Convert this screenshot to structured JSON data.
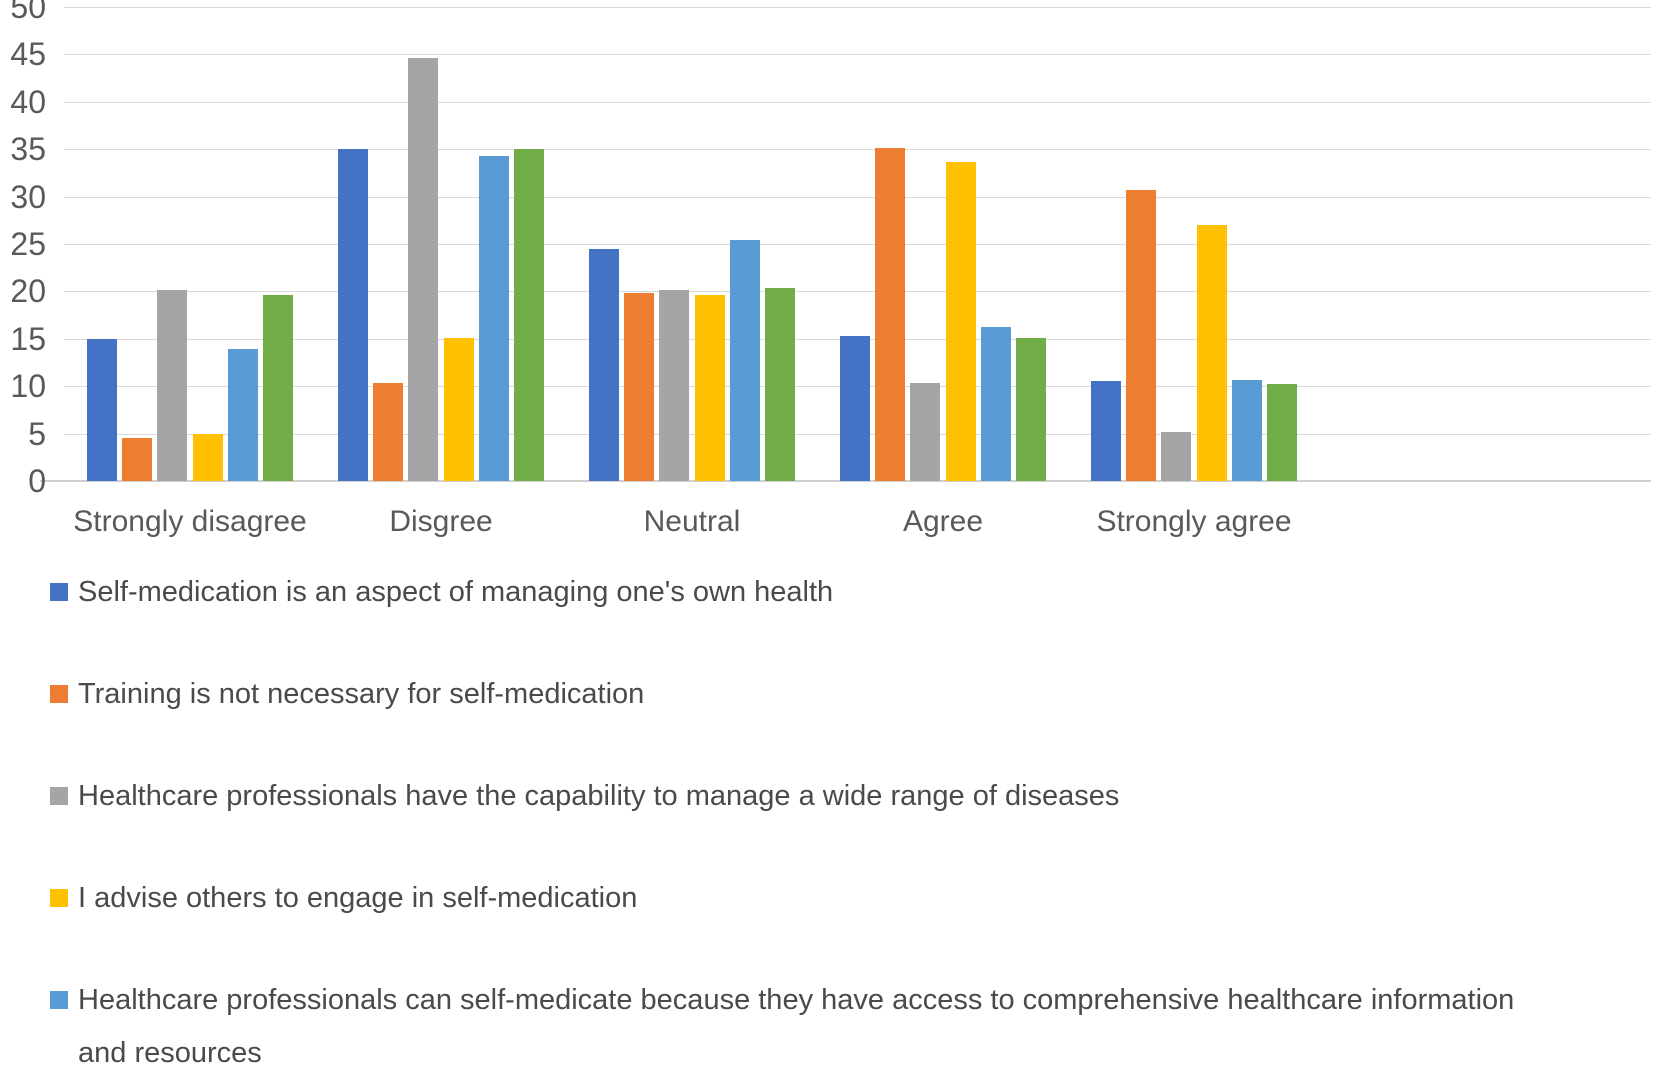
{
  "chart_data": {
    "type": "bar",
    "title": "",
    "xlabel": "",
    "ylabel": "",
    "ylim": [
      0,
      50
    ],
    "ytick_step": 5,
    "grid": true,
    "legend_position": "bottom-left",
    "categories": [
      "Strongly disagree",
      "Disgree",
      "Neutral",
      "Agree",
      "Strongly agree"
    ],
    "series": [
      {
        "name": "Self-medication is an aspect of managing one's own health",
        "color": "#4472C4",
        "values": [
          15.0,
          35.0,
          24.5,
          15.3,
          10.5
        ]
      },
      {
        "name": "Training is not necessary for self-medication",
        "color": "#ED7D31",
        "values": [
          4.5,
          10.3,
          19.8,
          35.1,
          30.7
        ]
      },
      {
        "name": "Healthcare professionals have the capability to manage a wide range of diseases",
        "color": "#A5A5A5",
        "values": [
          20.2,
          44.6,
          20.1,
          10.3,
          5.2
        ]
      },
      {
        "name": "I advise others to engage in self-medication",
        "color": "#FFC000",
        "values": [
          5.0,
          15.1,
          19.6,
          33.7,
          27.0
        ]
      },
      {
        "name": "Healthcare professionals can self-medicate because they have access to comprehensive healthcare information and resources",
        "color": "#5B9BD5",
        "values": [
          13.9,
          34.3,
          25.4,
          16.2,
          10.7
        ]
      },
      {
        "name": "",
        "color": "#70AD47",
        "values": [
          19.6,
          35.0,
          20.4,
          15.1,
          10.2
        ]
      }
    ],
    "colors": {
      "gridline": "#D9D9D9",
      "axis_line": "#CFCFCF",
      "tick_text": "#595959",
      "legend_text": "#4A4A4A"
    }
  }
}
